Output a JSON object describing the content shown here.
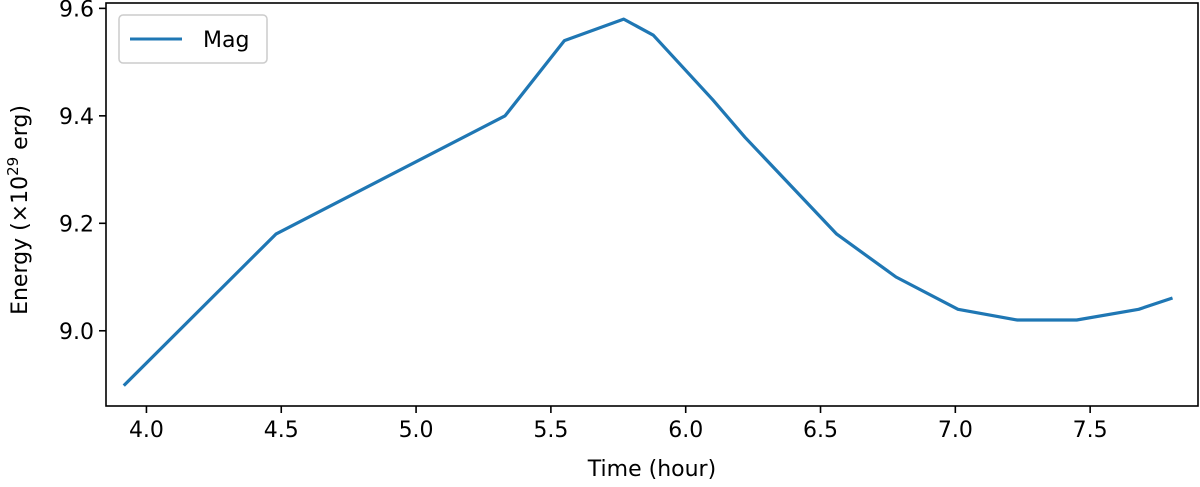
{
  "chart_data": {
    "type": "line",
    "xlabel": "Time (hour)",
    "ylabel": {
      "prefix": "Energy (×10",
      "superscript": "29",
      "suffix": " erg)"
    },
    "xlim": [
      3.85,
      7.9
    ],
    "ylim": [
      8.86,
      9.61
    ],
    "xticks": [
      4.0,
      4.5,
      5.0,
      5.5,
      6.0,
      6.5,
      7.0,
      7.5
    ],
    "xtick_labels": [
      "4.0",
      "4.5",
      "5.0",
      "5.5",
      "6.0",
      "6.5",
      "7.0",
      "7.5"
    ],
    "yticks": [
      9.0,
      9.2,
      9.4,
      9.6
    ],
    "ytick_labels": [
      "9.0",
      "9.2",
      "9.4",
      "9.6"
    ],
    "grid": false,
    "legend_position": "top-left",
    "series": [
      {
        "name": "Mag",
        "color": "#1f77b4",
        "x": [
          3.92,
          4.48,
          5.33,
          5.55,
          5.77,
          5.88,
          6.1,
          6.22,
          6.56,
          6.78,
          7.01,
          7.23,
          7.45,
          7.68,
          7.8
        ],
        "y": [
          8.9,
          9.18,
          9.4,
          9.54,
          9.58,
          9.55,
          9.43,
          9.36,
          9.18,
          9.1,
          9.04,
          9.02,
          9.02,
          9.04,
          9.06
        ]
      }
    ]
  }
}
